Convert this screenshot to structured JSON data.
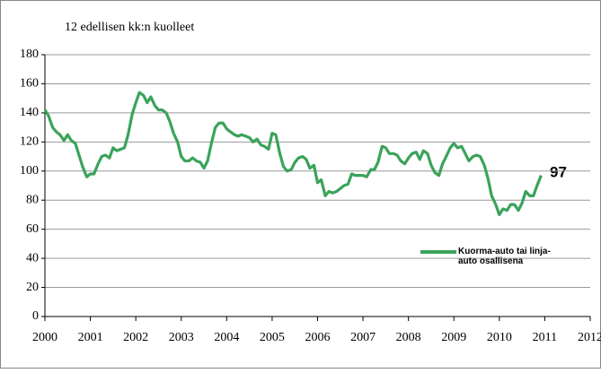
{
  "chart_data": {
    "type": "line",
    "subtitle": "12 edellisen kk:n kuolleet",
    "annotation": "97",
    "x": [
      2000,
      2000.08,
      2000.17,
      2000.25,
      2000.33,
      2000.42,
      2000.5,
      2000.58,
      2000.67,
      2000.75,
      2000.83,
      2000.92,
      2001,
      2001.08,
      2001.17,
      2001.25,
      2001.33,
      2001.42,
      2001.5,
      2001.58,
      2001.67,
      2001.75,
      2001.83,
      2001.92,
      2002,
      2002.08,
      2002.17,
      2002.25,
      2002.33,
      2002.42,
      2002.5,
      2002.58,
      2002.67,
      2002.75,
      2002.83,
      2002.92,
      2003,
      2003.08,
      2003.17,
      2003.25,
      2003.33,
      2003.42,
      2003.5,
      2003.58,
      2003.67,
      2003.75,
      2003.83,
      2003.92,
      2004,
      2004.08,
      2004.17,
      2004.25,
      2004.33,
      2004.42,
      2004.5,
      2004.58,
      2004.67,
      2004.75,
      2004.83,
      2004.92,
      2005,
      2005.08,
      2005.17,
      2005.25,
      2005.33,
      2005.42,
      2005.5,
      2005.58,
      2005.67,
      2005.75,
      2005.83,
      2005.92,
      2006,
      2006.08,
      2006.17,
      2006.25,
      2006.33,
      2006.42,
      2006.5,
      2006.58,
      2006.67,
      2006.75,
      2006.83,
      2006.92,
      2007,
      2007.08,
      2007.17,
      2007.25,
      2007.33,
      2007.42,
      2007.5,
      2007.58,
      2007.67,
      2007.75,
      2007.83,
      2007.92,
      2008,
      2008.08,
      2008.17,
      2008.25,
      2008.33,
      2008.42,
      2008.5,
      2008.58,
      2008.67,
      2008.75,
      2008.83,
      2008.92,
      2009,
      2009.08,
      2009.17,
      2009.25,
      2009.33,
      2009.42,
      2009.5,
      2009.58,
      2009.67,
      2009.75,
      2009.83,
      2009.92,
      2010,
      2010.08,
      2010.17,
      2010.25,
      2010.33,
      2010.42,
      2010.5,
      2010.58,
      2010.67,
      2010.75,
      2010.83,
      2010.92
    ],
    "series": [
      {
        "name": "Kuorma-auto tai linja-auto osallisena",
        "color": "#3aa35a",
        "values": [
          142,
          138,
          130,
          127,
          125,
          121,
          125,
          121,
          119,
          111,
          103,
          96,
          98,
          98,
          105,
          110,
          111,
          109,
          116,
          114,
          115,
          116,
          125,
          139,
          147,
          154,
          152,
          147,
          151,
          145,
          142,
          142,
          140,
          134,
          126,
          120,
          110,
          107,
          107,
          109,
          107,
          106,
          102,
          107,
          120,
          130,
          133,
          133,
          129,
          127,
          125,
          124,
          125,
          124,
          123,
          120,
          122,
          118,
          117,
          115,
          126,
          125,
          112,
          103,
          100,
          101,
          106,
          109,
          110,
          108,
          102,
          104,
          92,
          94,
          83,
          86,
          85,
          86,
          88,
          90,
          91,
          98,
          97,
          97,
          97,
          96,
          101,
          101,
          106,
          117,
          116,
          112,
          112,
          111,
          107,
          105,
          109,
          112,
          113,
          108,
          114,
          112,
          104,
          99,
          97,
          105,
          110,
          116,
          119,
          116,
          117,
          112,
          107,
          110,
          111,
          110,
          104,
          95,
          83,
          77,
          70,
          74,
          73,
          77,
          77,
          73,
          78,
          86,
          83,
          83,
          90,
          97
        ]
      }
    ],
    "xlim": [
      2000,
      2012
    ],
    "xticks": [
      2000,
      2001,
      2002,
      2003,
      2004,
      2005,
      2006,
      2007,
      2008,
      2009,
      2010,
      2011,
      2012
    ],
    "ylim": [
      0,
      180
    ],
    "yticks": [
      0,
      20,
      40,
      60,
      80,
      100,
      120,
      140,
      160,
      180
    ],
    "grid": true,
    "legend": "right"
  }
}
